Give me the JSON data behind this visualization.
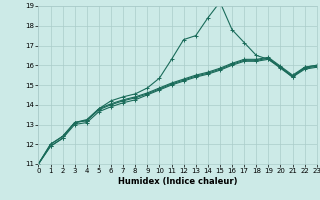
{
  "xlabel": "Humidex (Indice chaleur)",
  "background_color": "#cceae7",
  "grid_color": "#aaccca",
  "line_color": "#1a6b5a",
  "xlim": [
    0,
    23
  ],
  "ylim": [
    11,
    19
  ],
  "xticks": [
    0,
    1,
    2,
    3,
    4,
    5,
    6,
    7,
    8,
    9,
    10,
    11,
    12,
    13,
    14,
    15,
    16,
    17,
    18,
    19,
    20,
    21,
    22,
    23
  ],
  "yticks": [
    11,
    12,
    13,
    14,
    15,
    16,
    17,
    18,
    19
  ],
  "line1_x": [
    0,
    1,
    2,
    3,
    4,
    5,
    6,
    7,
    8,
    9,
    10,
    11,
    12,
    13,
    14,
    15,
    16,
    17,
    18,
    19,
    20,
    21,
    22,
    23
  ],
  "line1_y": [
    11.0,
    12.0,
    12.4,
    13.1,
    13.25,
    13.8,
    14.05,
    14.25,
    14.4,
    14.6,
    14.85,
    15.1,
    15.3,
    15.5,
    15.65,
    15.85,
    16.1,
    16.3,
    16.3,
    16.4,
    15.95,
    15.5,
    15.9,
    16.0
  ],
  "line2_x": [
    0,
    1,
    2,
    3,
    4,
    5,
    6,
    7,
    8,
    9,
    10,
    11,
    12,
    13,
    14,
    15,
    16,
    17,
    18,
    19,
    20,
    21,
    22,
    23
  ],
  "line2_y": [
    11.0,
    12.0,
    12.4,
    13.1,
    13.2,
    13.75,
    14.0,
    14.2,
    14.35,
    14.55,
    14.8,
    15.05,
    15.25,
    15.45,
    15.6,
    15.8,
    16.05,
    16.25,
    16.25,
    16.35,
    15.9,
    15.45,
    15.85,
    15.95
  ],
  "line3_x": [
    0,
    1,
    2,
    3,
    4,
    5,
    6,
    7,
    8,
    9,
    10,
    11,
    12,
    13,
    14,
    15,
    16,
    17,
    18,
    19,
    20,
    21,
    22,
    23
  ],
  "line3_y": [
    11.0,
    11.9,
    12.3,
    13.0,
    13.1,
    13.65,
    13.9,
    14.1,
    14.25,
    14.5,
    14.75,
    15.0,
    15.2,
    15.4,
    15.55,
    15.75,
    16.0,
    16.2,
    16.2,
    16.3,
    15.85,
    15.4,
    15.8,
    15.9
  ],
  "line4_x": [
    0,
    1,
    2,
    3,
    4,
    5,
    6,
    7,
    8,
    9,
    10,
    11,
    12,
    13,
    14,
    15,
    16,
    17,
    18,
    19,
    20,
    21,
    22,
    23
  ],
  "line4_y": [
    11.0,
    11.9,
    12.3,
    13.1,
    13.2,
    13.8,
    14.2,
    14.4,
    14.55,
    14.85,
    15.35,
    16.3,
    17.3,
    17.5,
    18.4,
    19.2,
    17.8,
    17.15,
    16.5,
    16.3,
    15.9,
    15.4,
    15.9,
    16.0
  ]
}
